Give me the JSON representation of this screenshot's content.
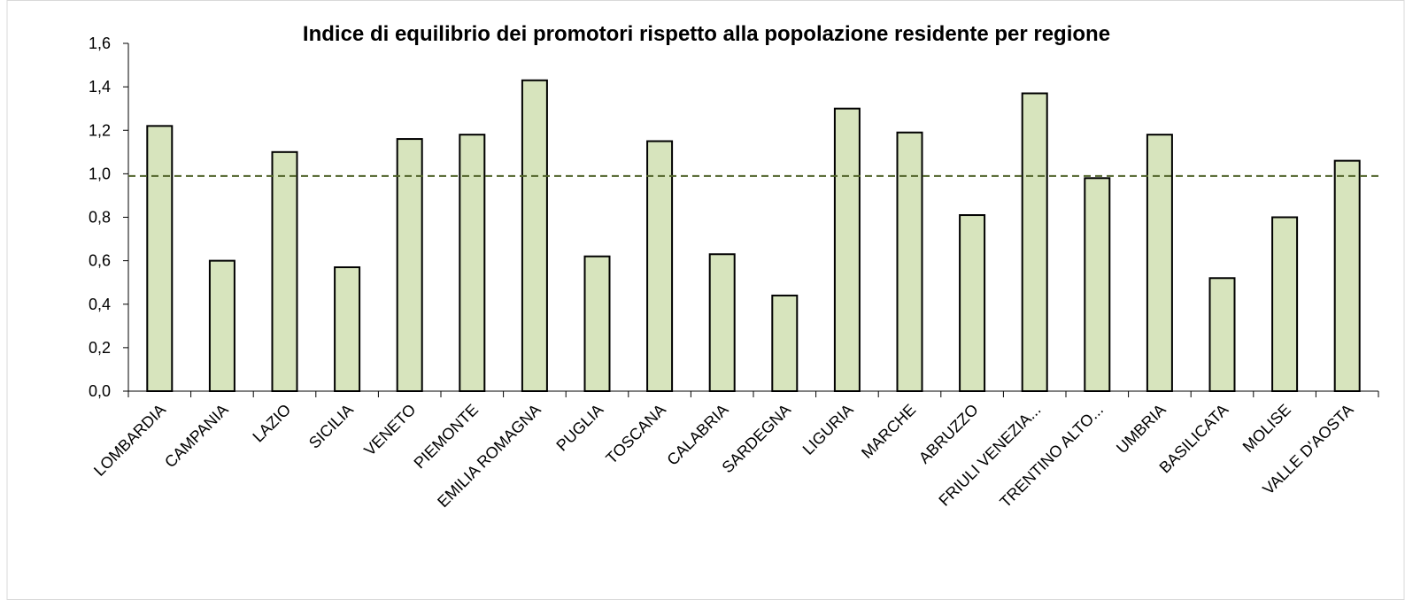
{
  "chart_data": {
    "type": "bar",
    "title": "Indice di equilibrio dei promotori rispetto alla popolazione residente per regione",
    "categories": [
      "LOMBARDIA",
      "CAMPANIA",
      "LAZIO",
      "SICILIA",
      "VENETO",
      "PIEMONTE",
      "EMILIA ROMAGNA",
      "PUGLIA",
      "TOSCANA",
      "CALABRIA",
      "SARDEGNA",
      "LIGURIA",
      "MARCHE",
      "ABRUZZO",
      "FRIULI VENEZIA...",
      "TRENTINO ALTO...",
      "UMBRIA",
      "BASILICATA",
      "MOLISE",
      "VALLE D'AOSTA"
    ],
    "values": [
      1.22,
      0.6,
      1.1,
      0.57,
      1.16,
      1.18,
      1.43,
      0.62,
      1.15,
      0.63,
      0.44,
      1.3,
      1.19,
      0.81,
      1.37,
      0.98,
      1.18,
      0.52,
      0.8,
      1.06
    ],
    "color": "#d7e4bd",
    "reference_line": 0.99,
    "reference_color": "#4f6228",
    "ylim": [
      0,
      1.6
    ],
    "yticks": [
      {
        "value": 0,
        "label": "0,0"
      },
      {
        "value": 0.2,
        "label": "0,2"
      },
      {
        "value": 0.4,
        "label": "0,4"
      },
      {
        "value": 0.6,
        "label": "0,6"
      },
      {
        "value": 0.8,
        "label": "0,8"
      },
      {
        "value": 1.0,
        "label": "1,0"
      },
      {
        "value": 1.2,
        "label": "1,2"
      },
      {
        "value": 1.4,
        "label": "1,4"
      },
      {
        "value": 1.6,
        "label": "1,6"
      }
    ],
    "grid": false
  }
}
